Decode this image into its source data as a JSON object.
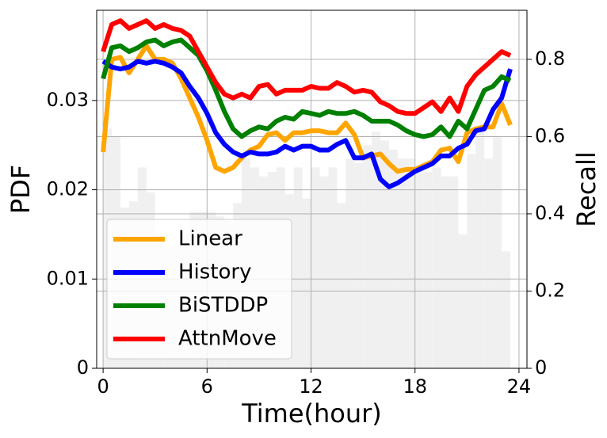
{
  "chart_data": {
    "type": "histogram",
    "xlabel": "Time(hour)",
    "ylabel": "PDF",
    "y2label": "Recall",
    "bins": [
      0,
      0.5,
      1,
      1.5,
      2,
      2.5,
      3,
      3.5,
      4,
      4.5,
      5,
      5.5,
      6,
      6.5,
      7,
      7.5,
      8,
      8.5,
      9,
      9.5,
      10,
      10.5,
      11,
      11.5,
      12,
      12.5,
      13,
      13.5,
      14,
      14.5,
      15,
      15.5,
      16,
      16.5,
      17,
      17.5,
      18,
      18.5,
      19,
      19.5,
      20,
      20.5,
      21,
      21.5,
      22,
      22.5,
      23,
      23.5
    ],
    "values": [
      0.0269,
      0.026,
      0.018,
      0.0187,
      0.0225,
      0.0197,
      0.0148,
      0.0134,
      0.0138,
      0.015,
      0.0175,
      0.0175,
      0.0175,
      0.017,
      0.0165,
      0.0185,
      0.0235,
      0.0225,
      0.0215,
      0.022,
      0.0225,
      0.0195,
      0.0225,
      0.019,
      0.0225,
      0.0215,
      0.0225,
      0.0185,
      0.0235,
      0.023,
      0.025,
      0.0265,
      0.0255,
      0.0245,
      0.0235,
      0.0235,
      0.0225,
      0.022,
      0.0225,
      0.0215,
      0.0215,
      0.015,
      0.024,
      0.027,
      0.0235,
      0.026,
      0.0131
    ],
    "color": "#f0f0f0",
    "x": [
      0,
      0.5,
      1,
      1.5,
      2,
      2.5,
      3,
      3.5,
      4,
      4.5,
      5,
      5.5,
      6,
      6.5,
      7,
      7.5,
      8,
      8.5,
      9,
      9.5,
      10,
      10.5,
      11,
      11.5,
      12,
      12.5,
      13,
      13.5,
      14,
      14.5,
      15,
      15.5,
      16,
      16.5,
      17,
      17.5,
      18,
      18.5,
      19,
      19.5,
      20,
      20.5,
      21,
      21.5,
      22,
      22.5,
      23,
      23.5
    ],
    "series": [
      {
        "name": "Linear",
        "color": "#ffa500",
        "axis": "y2",
        "values": [
          0.56,
          0.8,
          0.805,
          0.765,
          0.8,
          0.835,
          0.8,
          0.8,
          0.79,
          0.75,
          0.7,
          0.65,
          0.59,
          0.52,
          0.51,
          0.52,
          0.545,
          0.565,
          0.575,
          0.605,
          0.61,
          0.59,
          0.61,
          0.61,
          0.615,
          0.615,
          0.61,
          0.61,
          0.635,
          0.605,
          0.545,
          0.55,
          0.555,
          0.53,
          0.51,
          0.515,
          0.515,
          0.525,
          0.535,
          0.565,
          0.57,
          0.535,
          0.61,
          0.62,
          0.625,
          0.625,
          0.685,
          0.63
        ]
      },
      {
        "name": "History",
        "color": "#0000ff",
        "axis": "y2",
        "values": [
          0.795,
          0.78,
          0.775,
          0.78,
          0.795,
          0.79,
          0.795,
          0.79,
          0.78,
          0.765,
          0.73,
          0.7,
          0.66,
          0.61,
          0.58,
          0.56,
          0.55,
          0.56,
          0.555,
          0.555,
          0.56,
          0.575,
          0.565,
          0.575,
          0.575,
          0.565,
          0.565,
          0.58,
          0.59,
          0.545,
          0.545,
          0.555,
          0.49,
          0.47,
          0.48,
          0.495,
          0.51,
          0.52,
          0.53,
          0.55,
          0.55,
          0.57,
          0.58,
          0.615,
          0.62,
          0.67,
          0.7,
          0.775
        ]
      },
      {
        "name": "BiSTDDP",
        "color": "#008000",
        "axis": "y2",
        "values": [
          0.75,
          0.83,
          0.835,
          0.82,
          0.83,
          0.845,
          0.85,
          0.835,
          0.845,
          0.85,
          0.83,
          0.81,
          0.77,
          0.72,
          0.665,
          0.62,
          0.6,
          0.615,
          0.625,
          0.62,
          0.64,
          0.65,
          0.645,
          0.665,
          0.66,
          0.655,
          0.665,
          0.66,
          0.66,
          0.665,
          0.655,
          0.64,
          0.64,
          0.64,
          0.63,
          0.615,
          0.605,
          0.6,
          0.605,
          0.625,
          0.6,
          0.64,
          0.62,
          0.67,
          0.72,
          0.73,
          0.755,
          0.745
        ]
      },
      {
        "name": "AttnMove",
        "color": "#ff0000",
        "axis": "y2",
        "values": [
          0.82,
          0.89,
          0.9,
          0.88,
          0.89,
          0.9,
          0.88,
          0.89,
          0.88,
          0.875,
          0.86,
          0.82,
          0.78,
          0.74,
          0.71,
          0.7,
          0.71,
          0.7,
          0.73,
          0.735,
          0.71,
          0.72,
          0.72,
          0.72,
          0.73,
          0.725,
          0.725,
          0.74,
          0.73,
          0.715,
          0.72,
          0.715,
          0.69,
          0.68,
          0.665,
          0.66,
          0.66,
          0.675,
          0.69,
          0.665,
          0.7,
          0.665,
          0.73,
          0.76,
          0.78,
          0.8,
          0.82,
          0.81
        ]
      }
    ],
    "xlim": [
      -0.37,
      24.46
    ],
    "xticks": [
      0,
      6,
      12,
      18,
      24
    ],
    "ylim": [
      0,
      0.0401
    ],
    "yticks": [
      0,
      0.01,
      0.02,
      0.03
    ],
    "y2lim": [
      0,
      0.927
    ],
    "y2ticks": [
      0,
      0.2,
      0.4,
      0.6,
      0.8
    ],
    "grid": true,
    "legend": "lower left"
  }
}
